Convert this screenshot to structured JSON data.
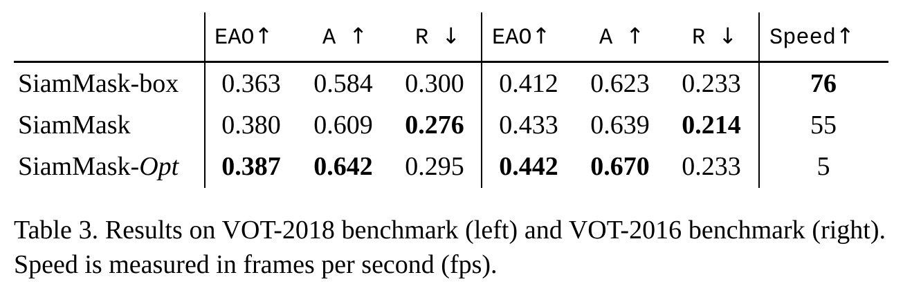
{
  "table": {
    "headers": [
      "EAO",
      "A",
      "R",
      "EAO",
      "A",
      "R",
      "Speed"
    ],
    "header_arrows": [
      "↑",
      "↑",
      "↓",
      "↑",
      "↑",
      "↓",
      "↑"
    ],
    "rows": [
      {
        "label_main": "SiamMask-box",
        "label_italic": "",
        "values": [
          "0.363",
          "0.584",
          "0.300",
          "0.412",
          "0.623",
          "0.233",
          "76"
        ],
        "bold": [
          false,
          false,
          false,
          false,
          false,
          false,
          true
        ]
      },
      {
        "label_main": "SiamMask",
        "label_italic": "",
        "values": [
          "0.380",
          "0.609",
          "0.276",
          "0.433",
          "0.639",
          "0.214",
          "55"
        ],
        "bold": [
          false,
          false,
          true,
          false,
          false,
          true,
          false
        ]
      },
      {
        "label_main": "SiamMask-",
        "label_italic": "Opt",
        "values": [
          "0.387",
          "0.642",
          "0.295",
          "0.442",
          "0.670",
          "0.233",
          "5"
        ],
        "bold": [
          true,
          true,
          false,
          true,
          true,
          false,
          false
        ]
      }
    ]
  },
  "caption": "Table 3. Results on VOT-2018 benchmark (left) and VOT-2016 benchmark (right). Speed is measured in frames per second (fps)."
}
